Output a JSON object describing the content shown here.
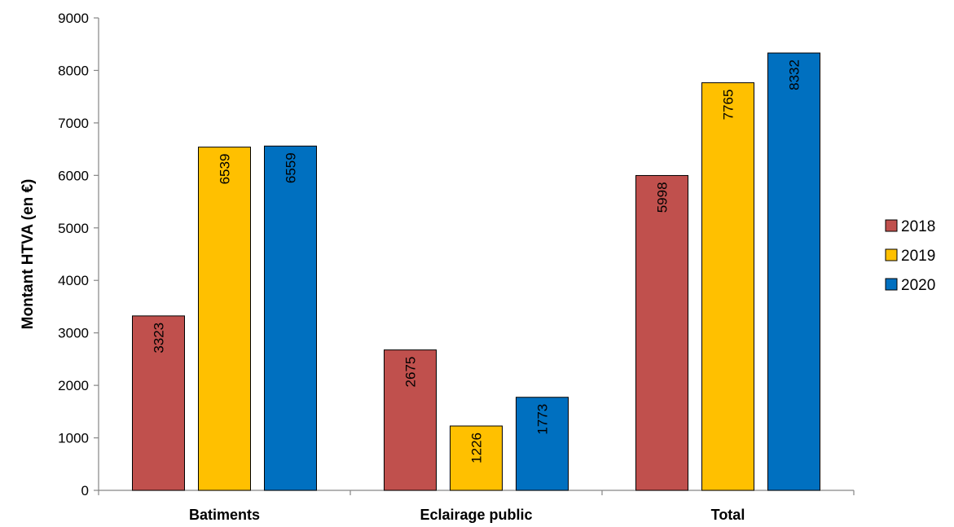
{
  "chart_data": {
    "type": "bar",
    "title": "",
    "xlabel": "",
    "ylabel": "Montant HTVA (en €)",
    "categories": [
      "Batiments",
      "Eclairage public",
      "Total"
    ],
    "series": [
      {
        "name": "2018",
        "color": "#C0504D",
        "values": [
          3323,
          2675,
          5998
        ]
      },
      {
        "name": "2019",
        "color": "#FFC000",
        "values": [
          6539,
          1226,
          7765
        ]
      },
      {
        "name": "2020",
        "color": "#0070C0",
        "values": [
          6559,
          1773,
          8332
        ]
      }
    ],
    "ylim": [
      0,
      9000
    ],
    "yticks": [
      0,
      1000,
      2000,
      3000,
      4000,
      5000,
      6000,
      7000,
      8000,
      9000
    ],
    "grid": false,
    "legend": "right",
    "data_labels": "rotated-vertical"
  }
}
